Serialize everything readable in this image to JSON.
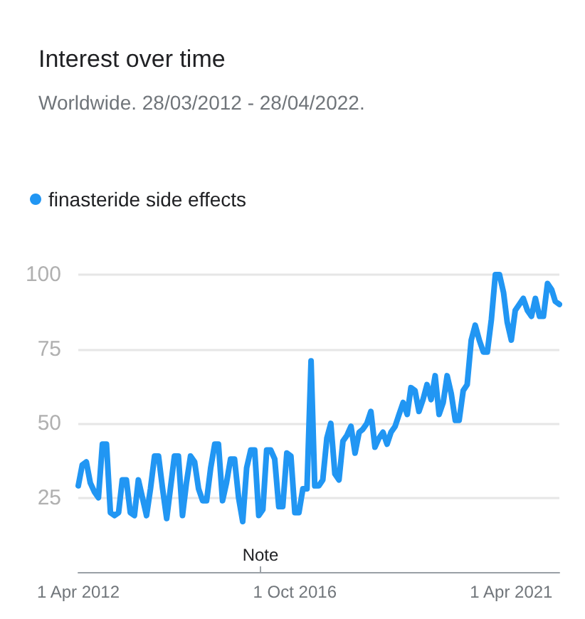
{
  "chart_data": {
    "type": "line",
    "title": "Interest over time",
    "subtitle": "Worldwide. 28/03/2012 - 28/04/2022.",
    "x": [
      "2012-04",
      "2012-05",
      "2012-06",
      "2012-07",
      "2012-08",
      "2012-09",
      "2012-10",
      "2012-11",
      "2012-12",
      "2013-01",
      "2013-02",
      "2013-03",
      "2013-04",
      "2013-05",
      "2013-06",
      "2013-07",
      "2013-08",
      "2013-09",
      "2013-10",
      "2013-11",
      "2013-12",
      "2014-01",
      "2014-02",
      "2014-03",
      "2014-04",
      "2014-05",
      "2014-06",
      "2014-07",
      "2014-08",
      "2014-09",
      "2014-10",
      "2014-11",
      "2014-12",
      "2015-01",
      "2015-02",
      "2015-03",
      "2015-04",
      "2015-05",
      "2015-06",
      "2015-07",
      "2015-08",
      "2015-09",
      "2015-10",
      "2015-11",
      "2015-12",
      "2016-01",
      "2016-02",
      "2016-03",
      "2016-04",
      "2016-05",
      "2016-06",
      "2016-07",
      "2016-08",
      "2016-09",
      "2016-10",
      "2016-11",
      "2016-12",
      "2017-01",
      "2017-02",
      "2017-03",
      "2017-04",
      "2017-05",
      "2017-06",
      "2017-07",
      "2017-08",
      "2017-09",
      "2017-10",
      "2017-11",
      "2017-12",
      "2018-01",
      "2018-02",
      "2018-03",
      "2018-04",
      "2018-05",
      "2018-06",
      "2018-07",
      "2018-08",
      "2018-09",
      "2018-10",
      "2018-11",
      "2018-12",
      "2019-01",
      "2019-02",
      "2019-03",
      "2019-04",
      "2019-05",
      "2019-06",
      "2019-07",
      "2019-08",
      "2019-09",
      "2019-10",
      "2019-11",
      "2019-12",
      "2020-01",
      "2020-02",
      "2020-03",
      "2020-04",
      "2020-05",
      "2020-06",
      "2020-07",
      "2020-08",
      "2020-09",
      "2020-10",
      "2020-11",
      "2020-12",
      "2021-01",
      "2021-02",
      "2021-03",
      "2021-04",
      "2021-05",
      "2021-06",
      "2021-07",
      "2021-08",
      "2021-09",
      "2021-10",
      "2021-11",
      "2021-12",
      "2022-01",
      "2022-02",
      "2022-03",
      "2022-04"
    ],
    "series": [
      {
        "name": "finasteride side effects",
        "color": "#2196f3",
        "values": [
          29,
          36,
          37,
          30,
          27,
          25,
          43,
          43,
          20,
          19,
          20,
          31,
          31,
          20,
          19,
          31,
          25,
          19,
          28,
          39,
          39,
          28,
          18,
          28,
          39,
          39,
          19,
          30,
          39,
          37,
          28,
          24,
          24,
          35,
          43,
          43,
          24,
          30,
          38,
          38,
          25,
          17,
          35,
          41,
          41,
          19,
          21,
          41,
          41,
          38,
          22,
          22,
          40,
          39,
          20,
          20,
          28,
          28,
          71,
          29,
          29,
          31,
          45,
          50,
          33,
          31,
          44,
          46,
          49,
          40,
          47,
          48,
          50,
          54,
          42,
          45,
          47,
          43,
          47,
          49,
          53,
          57,
          53,
          62,
          61,
          54,
          58,
          63,
          58,
          66,
          53,
          57,
          66,
          60,
          51,
          51,
          61,
          63,
          78,
          83,
          78,
          74,
          74,
          85,
          100,
          100,
          94,
          84,
          78,
          88,
          90,
          92,
          88,
          86,
          92,
          86,
          86,
          97,
          95,
          91,
          90
        ]
      }
    ],
    "xlim": [
      "2012-04",
      "2022-04"
    ],
    "xticks": [
      {
        "value": "2012-04-01",
        "label": "1 Apr 2012"
      },
      {
        "value": "2016-10-01",
        "label": "1 Oct 2016"
      },
      {
        "value": "2021-04-01",
        "label": "1 Apr 2021"
      }
    ],
    "ylim": [
      0,
      100
    ],
    "yticks": [
      25,
      50,
      75,
      100
    ],
    "annotations": [
      "Note"
    ],
    "grid": "y",
    "legend": "top left",
    "marker": "none",
    "line_style": "solid"
  }
}
